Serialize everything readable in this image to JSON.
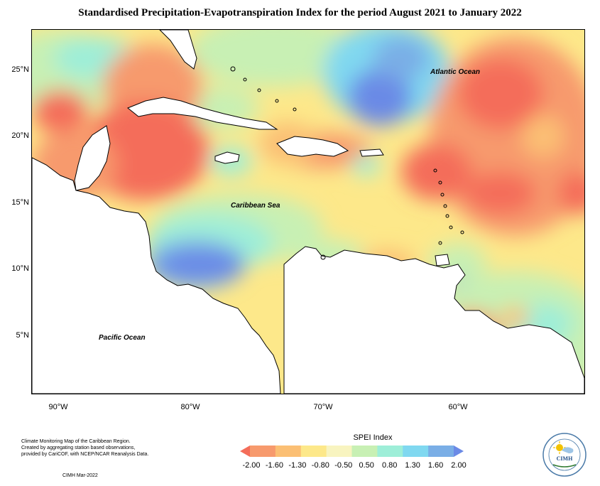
{
  "title": "Standardised Precipitation-Evapotranspiration Index for the period August 2021 to January 2022",
  "map": {
    "labels": {
      "atlantic": "Atlantic Ocean",
      "caribbean": "Caribbean Sea",
      "pacific": "Pacific Ocean"
    },
    "lat_ticks": [
      "25°N",
      "20°N",
      "15°N",
      "10°N",
      "5°N"
    ],
    "lon_ticks": [
      "90°W",
      "80°W",
      "70°W",
      "60°W"
    ]
  },
  "footer": {
    "line1": "Climate Monitoring Map of the Caribbean Region.",
    "line2": "Created by aggregating station based observations,",
    "line3": "provided by CariCOF, with NCEP/NCAR Reanalysis Data.",
    "credit": "CIMH Mar-2022"
  },
  "legend": {
    "title": "SPEI Index",
    "labels": [
      "-2.00",
      "-1.60",
      "-1.30",
      "-0.80",
      "-0.50",
      "0.50",
      "0.80",
      "1.30",
      "1.60",
      "2.00"
    ],
    "colors": [
      "#f46d5a",
      "#f79a6d",
      "#fbbf74",
      "#fde88a",
      "#f8f4c0",
      "#c8f0b4",
      "#9eeed8",
      "#80d8f0",
      "#7aaee6",
      "#6b8ae6"
    ]
  },
  "logo": {
    "text": "CIMH",
    "icon": "sun-icon"
  }
}
